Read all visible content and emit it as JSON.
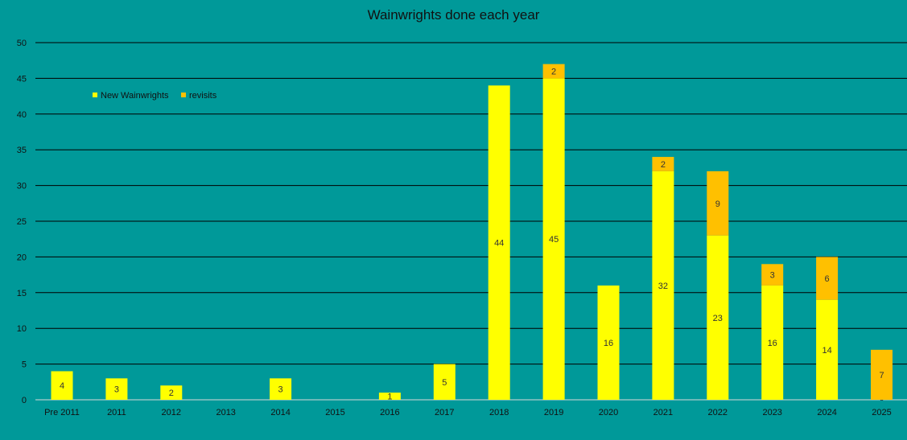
{
  "chart_data": {
    "type": "bar",
    "stacked": true,
    "title": "Wainwrights done each year",
    "xlabel": "",
    "ylabel": "",
    "ylim": [
      0,
      50
    ],
    "yticks": [
      0,
      5,
      10,
      15,
      20,
      25,
      30,
      35,
      40,
      45,
      50
    ],
    "grid": true,
    "legend_position": "top-left",
    "categories": [
      "Pre 2011",
      "2011",
      "2012",
      "2013",
      "2014",
      "2015",
      "2016",
      "2017",
      "2018",
      "2019",
      "2020",
      "2021",
      "2022",
      "2023",
      "2024",
      "2025"
    ],
    "series": [
      {
        "name": "New Wainwrights",
        "color": "#FFFF00",
        "values": [
          4,
          3,
          2,
          null,
          3,
          null,
          1,
          5,
          44,
          45,
          16,
          32,
          23,
          16,
          14,
          0
        ]
      },
      {
        "name": "revisits",
        "color": "#FFC000",
        "values": [
          null,
          null,
          null,
          null,
          null,
          null,
          null,
          null,
          null,
          2,
          null,
          2,
          9,
          3,
          6,
          7
        ]
      }
    ],
    "background_color": "#009999",
    "gridline_color": "#000000"
  }
}
